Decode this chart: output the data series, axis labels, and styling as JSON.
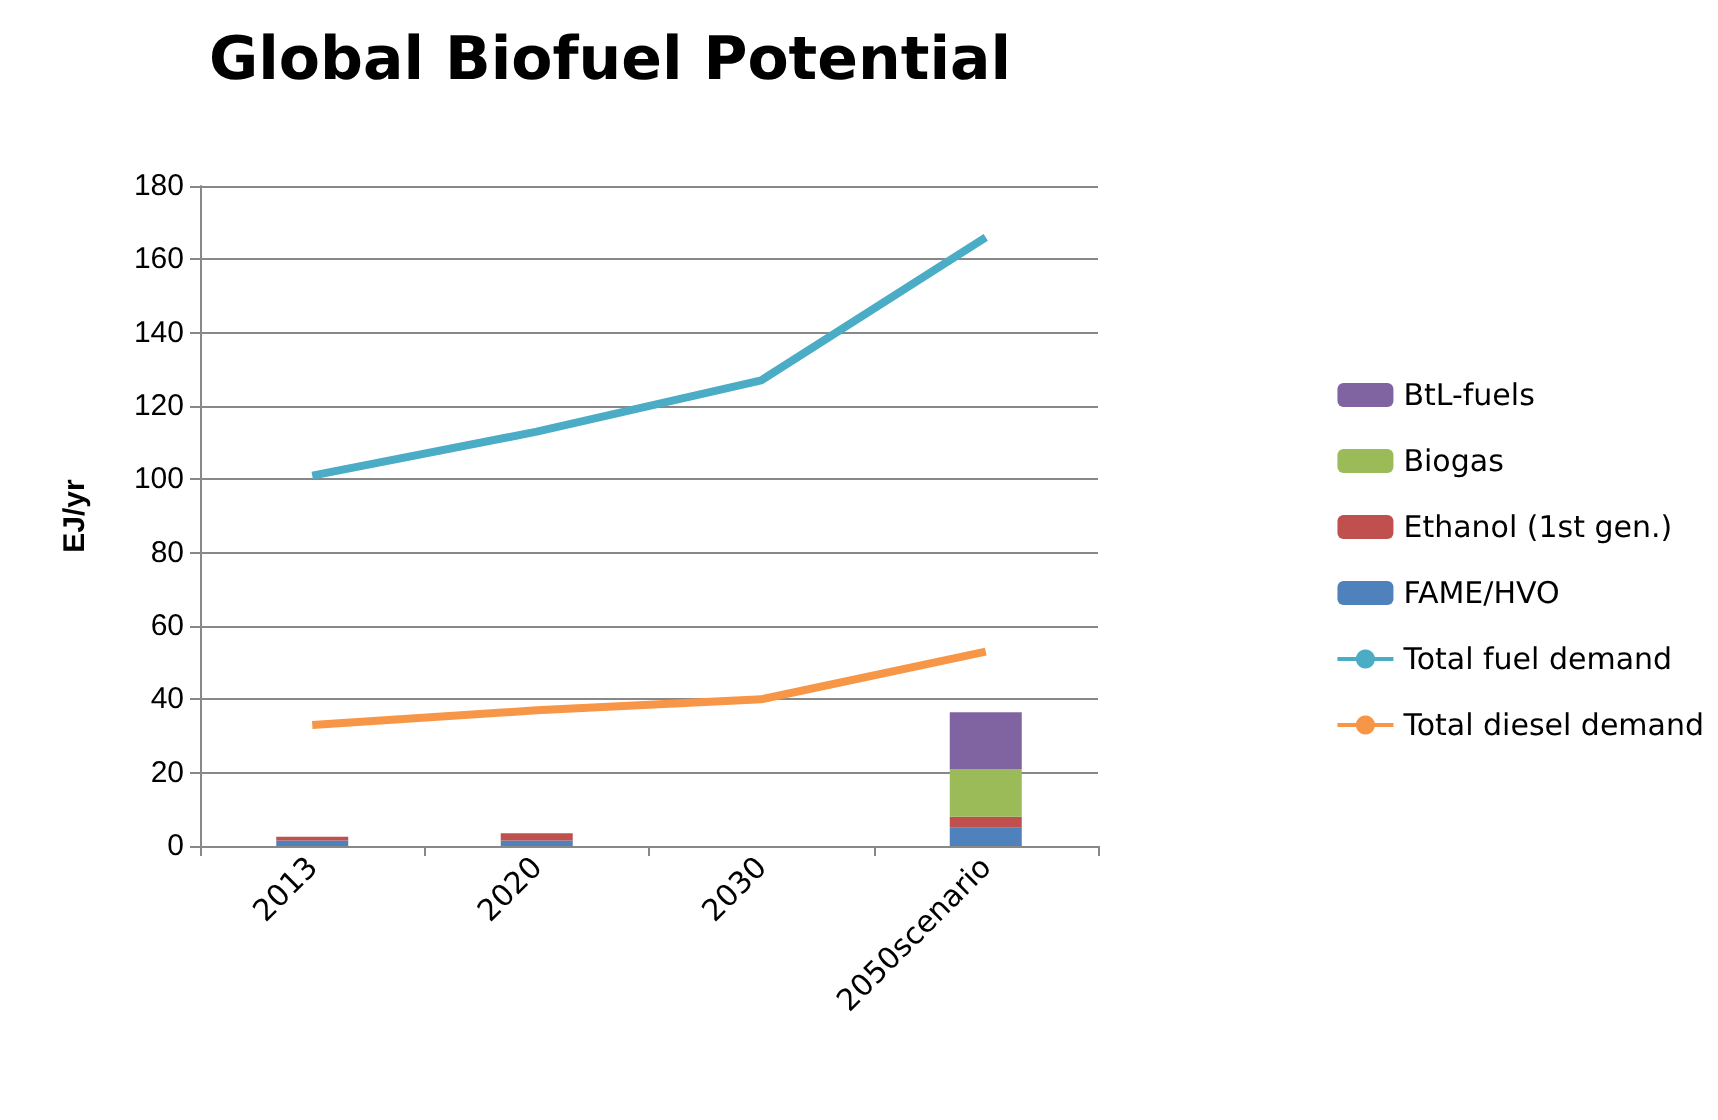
{
  "chart_data": {
    "type": "bar",
    "title": "Global Biofuel Potential",
    "ylabel": "EJ/yr",
    "categories": [
      "2013",
      "2020",
      "2030",
      "2050scenario"
    ],
    "stacked": true,
    "series": [
      {
        "name": "FAME/HVO",
        "color": "#4f81bd",
        "values": [
          1.5,
          1.5,
          null,
          5
        ]
      },
      {
        "name": "Ethanol (1st gen.)",
        "color": "#c0504d",
        "values": [
          1,
          2,
          null,
          3
        ]
      },
      {
        "name": "Biogas",
        "color": "#9bbb59",
        "values": [
          null,
          null,
          null,
          13
        ]
      },
      {
        "name": "BtL-fuels",
        "color": "#8064a2",
        "values": [
          null,
          null,
          null,
          15.5
        ]
      },
      {
        "name": "Total fuel demand",
        "type": "line",
        "color": "#4bacc6",
        "values": [
          101,
          113,
          127,
          166
        ]
      },
      {
        "name": "Total diesel demand",
        "type": "line",
        "color": "#f79646",
        "values": [
          33,
          37,
          40,
          53
        ]
      }
    ],
    "ylim": [
      0,
      180
    ],
    "yticks": [
      0,
      20,
      40,
      60,
      80,
      100,
      120,
      140,
      160,
      180
    ],
    "grid": "y",
    "legend": "right",
    "marker": "none"
  }
}
